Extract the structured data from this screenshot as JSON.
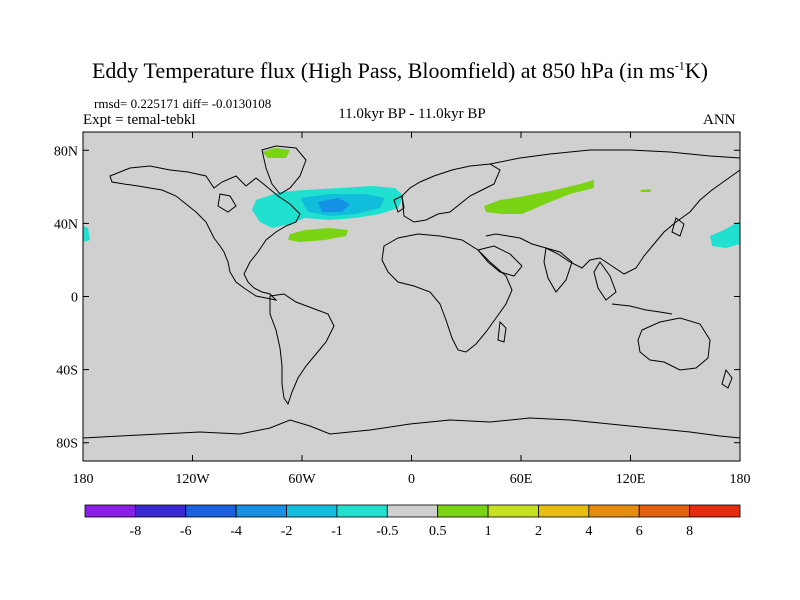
{
  "title": {
    "main": "Eddy Temperature flux (High Pass, Bloomfield) at 850 hPa (in ms",
    "sup": "-1",
    "tail": "K)"
  },
  "stats_line": "rmsd= 0.225171  diff= -0.0130108",
  "experiment_line": "Expt = temal-tebkl",
  "period_line": "11.0kyr BP - 11.0kyr BP",
  "season_label": "ANN",
  "map": {
    "lat_ticks": [
      {
        "lat": 80,
        "label": "80N"
      },
      {
        "lat": 40,
        "label": "40N"
      },
      {
        "lat": 0,
        "label": "0"
      },
      {
        "lat": -40,
        "label": "40S"
      },
      {
        "lat": -80,
        "label": "80S"
      }
    ],
    "lon_ticks": [
      {
        "lon": -180,
        "label": "180"
      },
      {
        "lon": -120,
        "label": "120W"
      },
      {
        "lon": -60,
        "label": "60W"
      },
      {
        "lon": 0,
        "label": "0"
      },
      {
        "lon": 60,
        "label": "60E"
      },
      {
        "lon": 120,
        "label": "120E"
      },
      {
        "lon": 180,
        "label": "180"
      }
    ],
    "background_color": "#d0d0d0",
    "coastline_color": "#000000"
  },
  "colorbar": {
    "colors": [
      "#8a1ee6",
      "#3a28d4",
      "#1a60e0",
      "#1490e4",
      "#10bedc",
      "#20e0d0",
      "#d0d0d0",
      "#7ad414",
      "#c4e020",
      "#e6be10",
      "#e68c0c",
      "#e6600c",
      "#e62c10"
    ],
    "labels": [
      "-8",
      "-6",
      "-4",
      "-2",
      "-1",
      "-0.5",
      "0.5",
      "1",
      "2",
      "4",
      "6",
      "8"
    ]
  }
}
